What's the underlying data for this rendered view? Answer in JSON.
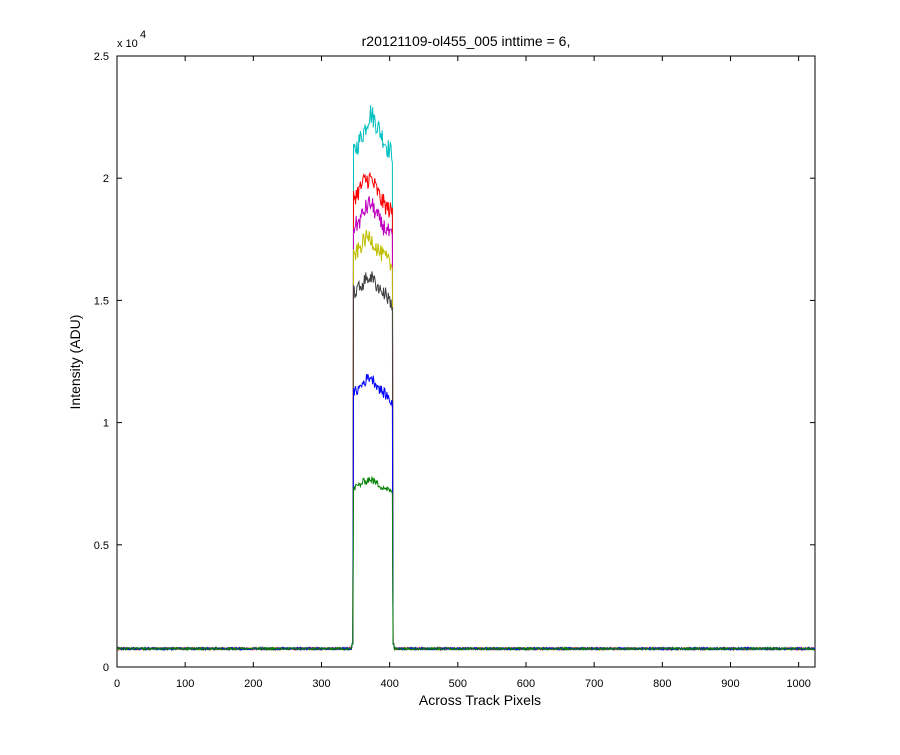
{
  "chart_data": {
    "type": "line",
    "title": "r20121109-ol455_005 inttime = 6,",
    "xlabel": "Across Track Pixels",
    "ylabel": "Intensity (ADU)",
    "y_exponent_label": "x 10",
    "y_exponent_power": "4",
    "xlim": [
      0,
      1024
    ],
    "ylim": [
      0,
      25000
    ],
    "x_ticks": [
      0,
      100,
      200,
      300,
      400,
      500,
      600,
      700,
      800,
      900,
      1000
    ],
    "x_tick_labels": [
      "0",
      "100",
      "200",
      "300",
      "400",
      "500",
      "600",
      "700",
      "800",
      "900",
      "1000"
    ],
    "y_ticks": [
      0,
      5000,
      10000,
      15000,
      20000,
      25000
    ],
    "y_tick_labels": [
      "0",
      "0.5",
      "1",
      "1.5",
      "2",
      "2.5"
    ],
    "grid": false,
    "legend": "none",
    "background_level": 750,
    "plateau_start": 347,
    "plateau_end": 404,
    "series": [
      {
        "color": "#00BFBF",
        "plateau_values": [
          21000,
          21500,
          22000,
          22700,
          22300,
          21800,
          21300,
          21000
        ]
      },
      {
        "color": "#FF0000",
        "plateau_values": [
          19200,
          19500,
          19900,
          20000,
          19600,
          19100,
          18800,
          18600
        ]
      },
      {
        "color": "#BF00BF",
        "plateau_values": [
          18000,
          18200,
          18700,
          19000,
          18600,
          18100,
          17900,
          17500
        ]
      },
      {
        "color": "#BFBF00",
        "plateau_values": [
          16800,
          17100,
          17500,
          17600,
          17200,
          16900,
          16700,
          16300
        ]
      },
      {
        "color": "#404040",
        "plateau_values": [
          15300,
          15500,
          15800,
          16000,
          15700,
          15400,
          15200,
          14800
        ]
      },
      {
        "color": "#0000FF",
        "plateau_values": [
          11200,
          11400,
          11700,
          11900,
          11600,
          11300,
          11100,
          10800
        ]
      },
      {
        "color": "#008000",
        "plateau_values": [
          7300,
          7450,
          7600,
          7700,
          7550,
          7400,
          7300,
          7100
        ]
      }
    ]
  }
}
